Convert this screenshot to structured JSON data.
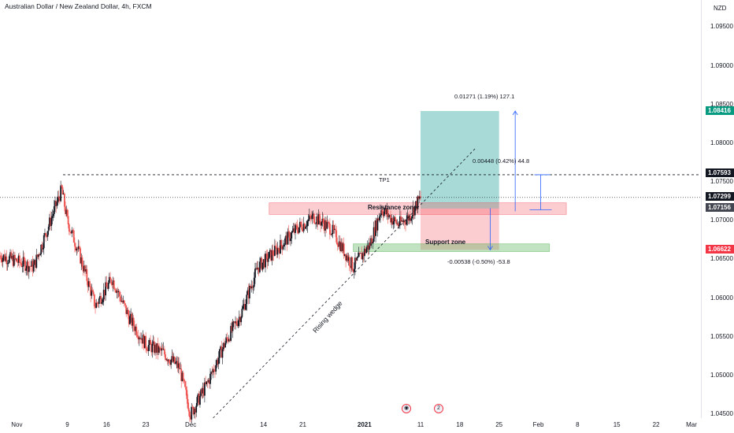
{
  "title": "Australian Dollar / New Zealand Dollar, 4h, FXCM",
  "currency": "NZD",
  "y_ticks": [
    "1.09500",
    "1.09000",
    "1.08500",
    "1.08000",
    "1.07500",
    "1.07000",
    "1.06500",
    "1.06000",
    "1.05500",
    "1.05000",
    "1.04500"
  ],
  "x_ticks": [
    "Nov",
    "9",
    "16",
    "23",
    "Dec",
    "14",
    "21",
    "2021",
    "11",
    "18",
    "25",
    "Feb",
    "8",
    "15",
    "22",
    "Mar"
  ],
  "price_tags": {
    "target": "1.08416",
    "tp1": "1.07593",
    "last": "1.07299",
    "entry": "1.07156",
    "stop": "1.06622"
  },
  "annotations": {
    "target_measure": "0.01271 (1.19%) 127.1",
    "tp1_measure": "0.00448 (0.42%) 44.8",
    "tp1_label": "TP1",
    "stop_measure": "-0.00538 (-0.50%) -53.8",
    "resistance": "Resistance zone",
    "support": "Support zone",
    "wedge": "Rising wedge"
  },
  "event_badge": "2",
  "colors": {
    "up": "#131722",
    "down": "#ef5350",
    "profit_zone": "#26a69a",
    "loss_zone": "#f23645",
    "target_tag": "#089981",
    "stop_tag": "#f23645",
    "measure_line": "#2962ff"
  },
  "chart_data": {
    "type": "candlestick",
    "symbol": "AUDNZD",
    "timeframe": "4h",
    "ylim": [
      1.0445,
      1.0985
    ],
    "x_range": [
      "2020-10-28",
      "2021-03-02"
    ],
    "levels": {
      "tp1": 1.07593,
      "last": 1.07299,
      "entry": 1.07156,
      "target": 1.08416,
      "stop": 1.06622
    },
    "close_path": [
      {
        "date": "2020-10-28",
        "close": 1.0655
      },
      {
        "date": "2020-11-03",
        "close": 1.064
      },
      {
        "date": "2020-11-06",
        "close": 1.07
      },
      {
        "date": "2020-11-08",
        "close": 1.074
      },
      {
        "date": "2020-11-09",
        "close": 1.07
      },
      {
        "date": "2020-11-11",
        "close": 1.066
      },
      {
        "date": "2020-11-14",
        "close": 1.059
      },
      {
        "date": "2020-11-17",
        "close": 1.0625
      },
      {
        "date": "2020-11-20",
        "close": 1.0575
      },
      {
        "date": "2020-11-23",
        "close": 1.054
      },
      {
        "date": "2020-11-26",
        "close": 1.053
      },
      {
        "date": "2020-11-29",
        "close": 1.051
      },
      {
        "date": "2020-12-01",
        "close": 1.045
      },
      {
        "date": "2020-12-04",
        "close": 1.049
      },
      {
        "date": "2020-12-07",
        "close": 1.054
      },
      {
        "date": "2020-12-10",
        "close": 1.058
      },
      {
        "date": "2020-12-13",
        "close": 1.064
      },
      {
        "date": "2020-12-16",
        "close": 1.066
      },
      {
        "date": "2020-12-20",
        "close": 1.069
      },
      {
        "date": "2020-12-23",
        "close": 1.0705
      },
      {
        "date": "2020-12-26",
        "close": 1.069
      },
      {
        "date": "2020-12-30",
        "close": 1.064
      },
      {
        "date": "2021-01-02",
        "close": 1.067
      },
      {
        "date": "2021-01-04",
        "close": 1.0715
      },
      {
        "date": "2021-01-07",
        "close": 1.0695
      },
      {
        "date": "2021-01-09",
        "close": 1.0705
      },
      {
        "date": "2021-01-11",
        "close": 1.073
      }
    ]
  }
}
